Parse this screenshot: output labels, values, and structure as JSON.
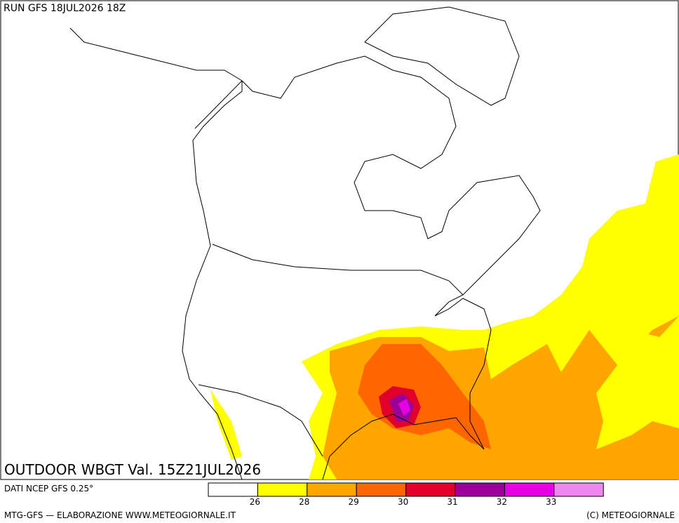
{
  "header": {
    "run": "RUN GFS 18JUL2026 18Z"
  },
  "map": {
    "title": "OUTDOOR WBGT Val. 15Z21JUL2026"
  },
  "legend": {
    "source": "DATI NCEP GFS 0.25°",
    "levels": [
      26,
      28,
      29,
      30,
      31,
      32,
      33
    ],
    "colors": [
      "#ffffff",
      "#ffff00",
      "#ffa500",
      "#ff6600",
      "#e0002a",
      "#9b009b",
      "#e600e6",
      "#ee88ee"
    ]
  },
  "footer": {
    "left": "MTG-GFS — ELABORAZIONE WWW.METEOGIORNALE.IT",
    "right": "(C) METEOGIORNALE"
  }
}
